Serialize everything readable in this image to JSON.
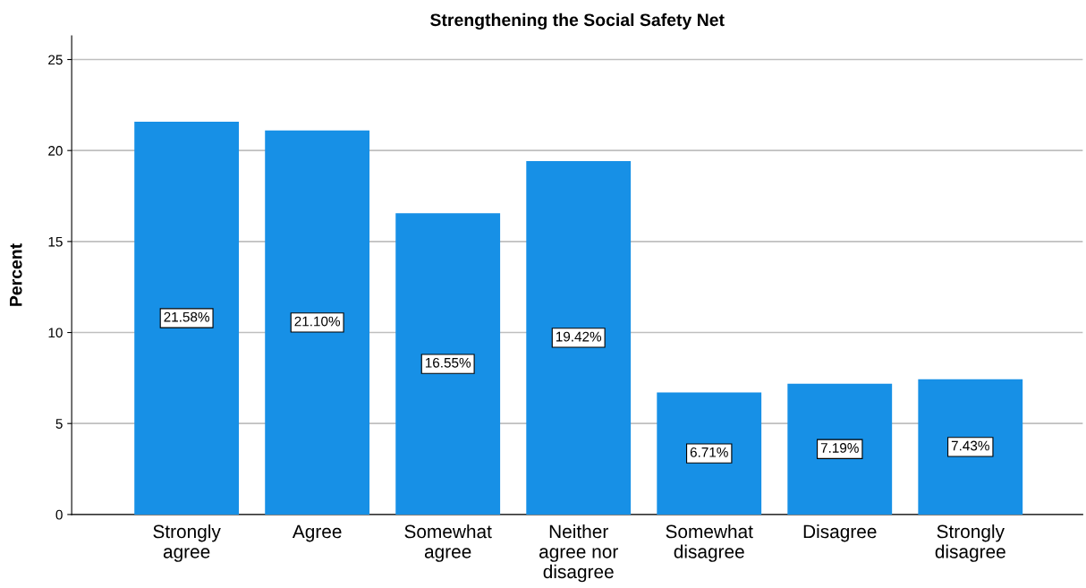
{
  "chart_data": {
    "type": "bar",
    "title": "Strengthening the Social Safety Net",
    "ylabel": "Percent",
    "categories": [
      "Strongly\nagree",
      "Agree",
      "Somewhat\nagree",
      "Neither\nagree nor\ndisagree",
      "Somewhat\ndisagree",
      "Disagree",
      "Strongly\ndisagree"
    ],
    "values": [
      21.58,
      21.1,
      16.55,
      19.42,
      6.71,
      7.19,
      7.43
    ],
    "value_labels": [
      "21.58%",
      "21.10%",
      "16.55%",
      "19.42%",
      "6.71%",
      "7.19%",
      "7.43%"
    ],
    "color": "#1790e6",
    "ylim": [
      0,
      26.3
    ],
    "yticks": [
      0,
      5,
      10,
      15,
      20,
      25
    ],
    "grid": "y",
    "legend": false
  }
}
